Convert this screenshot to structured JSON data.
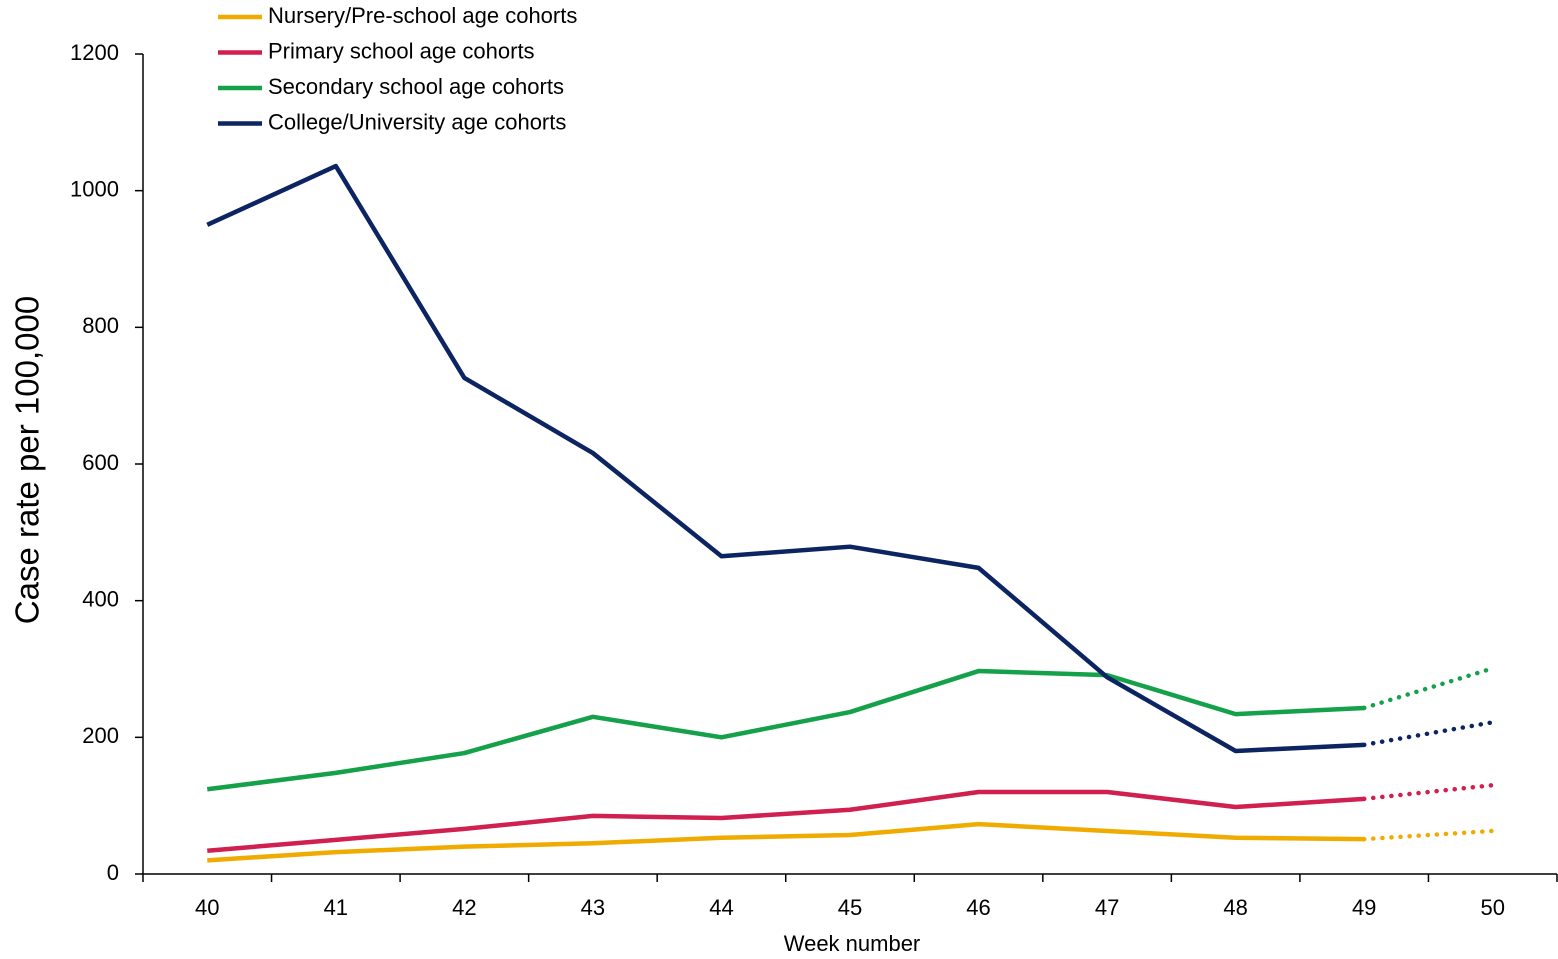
{
  "chart_data": {
    "type": "line",
    "x_label": "Week number",
    "y_label": "Case rate per 100,000",
    "categories": [
      40,
      41,
      42,
      43,
      44,
      45,
      46,
      47,
      48,
      49,
      50
    ],
    "dashed_from": 49,
    "ylim": [
      0,
      1200
    ],
    "yticks": [
      0,
      200,
      400,
      600,
      800,
      1000,
      1200
    ],
    "series": [
      {
        "name": "Nursery/Pre-school age cohorts",
        "color": "#f0ab00",
        "values": [
          20,
          32,
          40,
          45,
          53,
          57,
          73,
          63,
          53,
          51,
          63
        ]
      },
      {
        "name": "Primary school age cohorts",
        "color": "#d0204f",
        "values": [
          34,
          50,
          66,
          85,
          82,
          94,
          120,
          120,
          98,
          110,
          130
        ]
      },
      {
        "name": "Secondary school age cohorts",
        "color": "#14a14a",
        "values": [
          124,
          148,
          177,
          230,
          200,
          237,
          297,
          291,
          234,
          243,
          301
        ]
      },
      {
        "name": "College/University age cohorts",
        "color": "#0c2461",
        "values": [
          950,
          1036,
          726,
          616,
          465,
          479,
          448,
          288,
          180,
          189,
          222
        ]
      }
    ]
  }
}
